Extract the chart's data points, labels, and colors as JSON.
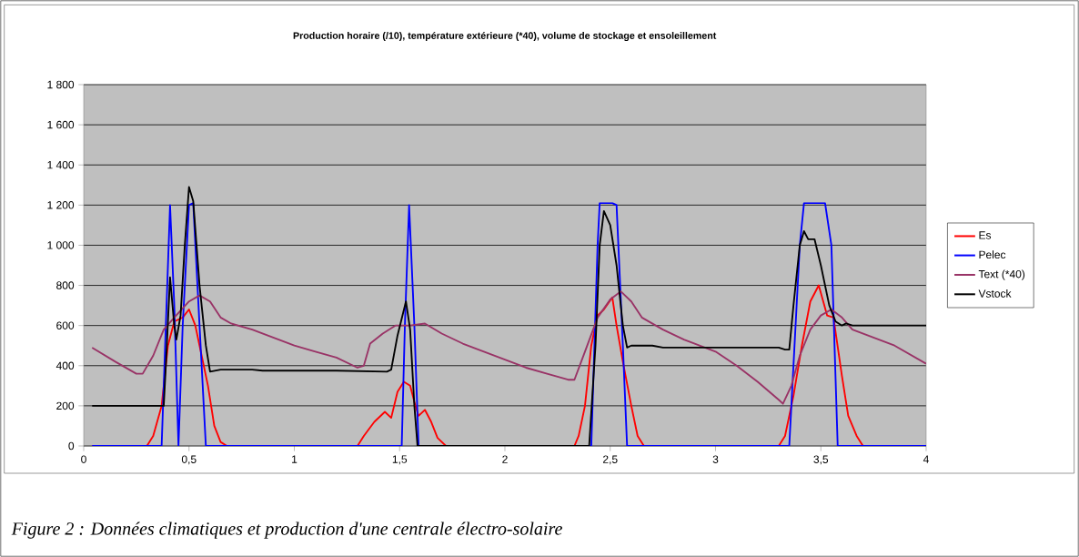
{
  "chart_data": {
    "type": "line",
    "title": "Production horaire (/10), température extérieure (*40), volume de stockage et ensoleillement",
    "annotations": [
      "Figure 2 :  Données climatiques et production d'une centrale électro-solaire"
    ],
    "xlim": [
      0,
      4
    ],
    "xticks": [
      0,
      {
        "value": 0.5,
        "label": "0,5"
      },
      1,
      {
        "value": 1.5,
        "label": "1,5"
      },
      2,
      {
        "value": 2.5,
        "label": "2,5"
      },
      3,
      {
        "value": 3.5,
        "label": "3,5"
      },
      4
    ],
    "ylim": [
      0,
      1800
    ],
    "yticks": [
      0,
      200,
      400,
      600,
      800,
      {
        "value": 1000,
        "label": "1 000"
      },
      {
        "value": 1200,
        "label": "1 200"
      },
      {
        "value": 1400,
        "label": "1 400"
      },
      {
        "value": 1600,
        "label": "1 600"
      },
      {
        "value": 1800,
        "label": "1 800"
      }
    ],
    "grid": "y",
    "legend": "right",
    "marker": "none",
    "line_style": "solid",
    "series": [
      {
        "name": "Es",
        "color": "#ff0000",
        "x": [
          0.04,
          0.3,
          0.33,
          0.37,
          0.4,
          0.43,
          0.47,
          0.5,
          0.53,
          0.56,
          0.59,
          0.62,
          0.65,
          0.68,
          1.3,
          1.33,
          1.38,
          1.43,
          1.46,
          1.49,
          1.52,
          1.55,
          1.57,
          1.59,
          1.62,
          1.65,
          1.68,
          1.72,
          2.33,
          2.35,
          2.38,
          2.41,
          2.44,
          2.47,
          2.51,
          2.53,
          2.56,
          2.6,
          2.63,
          2.66,
          3.3,
          3.33,
          3.37,
          3.41,
          3.45,
          3.49,
          3.53,
          3.56,
          3.6,
          3.63,
          3.67,
          3.7,
          4.0
        ],
        "values": [
          0,
          0,
          50,
          200,
          500,
          620,
          640,
          680,
          600,
          450,
          300,
          100,
          20,
          0,
          0,
          50,
          120,
          170,
          140,
          270,
          320,
          300,
          220,
          150,
          180,
          120,
          40,
          0,
          0,
          50,
          200,
          500,
          650,
          680,
          740,
          600,
          420,
          200,
          50,
          0,
          0,
          50,
          250,
          500,
          720,
          800,
          650,
          640,
          350,
          150,
          50,
          0,
          0
        ]
      },
      {
        "name": "Pelec",
        "color": "#0000ff",
        "x": [
          0.04,
          0.37,
          0.39,
          0.41,
          0.43,
          0.45,
          0.47,
          0.5,
          0.52,
          0.55,
          0.58,
          1.51,
          1.525,
          1.545,
          1.57,
          1.59,
          2.41,
          2.44,
          2.45,
          2.51,
          2.53,
          2.56,
          2.58,
          3.35,
          3.4,
          3.42,
          3.52,
          3.55,
          3.58,
          4.0
        ],
        "values": [
          0,
          0,
          600,
          1200,
          700,
          0,
          600,
          1200,
          1210,
          600,
          0,
          0,
          600,
          1200,
          600,
          0,
          0,
          1000,
          1210,
          1210,
          1200,
          500,
          0,
          0,
          1000,
          1210,
          1210,
          1000,
          0,
          0
        ]
      },
      {
        "name": "Text (*40)",
        "color": "#993366",
        "x": [
          0.04,
          0.15,
          0.25,
          0.28,
          0.33,
          0.38,
          0.43,
          0.5,
          0.55,
          0.6,
          0.65,
          0.7,
          0.8,
          0.9,
          1.0,
          1.1,
          1.2,
          1.3,
          1.33,
          1.36,
          1.42,
          1.48,
          1.55,
          1.62,
          1.7,
          1.8,
          1.9,
          2.0,
          2.1,
          2.2,
          2.3,
          2.33,
          2.38,
          2.44,
          2.5,
          2.55,
          2.6,
          2.65,
          2.75,
          2.85,
          3.0,
          3.1,
          3.2,
          3.3,
          3.32,
          3.36,
          3.4,
          3.45,
          3.5,
          3.55,
          3.6,
          3.65,
          3.75,
          3.85,
          4.0
        ],
        "values": [
          490,
          420,
          360,
          360,
          450,
          580,
          640,
          720,
          750,
          720,
          640,
          610,
          580,
          540,
          500,
          470,
          440,
          390,
          400,
          510,
          560,
          600,
          600,
          610,
          560,
          510,
          470,
          430,
          390,
          360,
          330,
          330,
          470,
          640,
          730,
          770,
          720,
          640,
          580,
          530,
          470,
          400,
          320,
          230,
          210,
          300,
          450,
          580,
          650,
          680,
          640,
          580,
          540,
          500,
          410
        ]
      },
      {
        "name": "Vstock",
        "color": "#000000",
        "x": [
          0.04,
          0.38,
          0.39,
          0.41,
          0.43,
          0.44,
          0.46,
          0.48,
          0.5,
          0.52,
          0.55,
          0.58,
          0.6,
          0.65,
          0.8,
          0.85,
          1.2,
          1.44,
          1.46,
          1.49,
          1.53,
          1.55,
          1.57,
          1.585,
          2.4,
          2.43,
          2.45,
          2.47,
          2.5,
          2.53,
          2.56,
          2.58,
          2.6,
          2.7,
          2.75,
          3.3,
          3.33,
          3.35,
          3.37,
          3.4,
          3.42,
          3.44,
          3.47,
          3.5,
          3.54,
          3.57,
          3.6,
          3.62,
          3.65,
          4.0
        ],
        "values": [
          200,
          200,
          400,
          840,
          600,
          530,
          650,
          1000,
          1290,
          1220,
          800,
          500,
          370,
          380,
          380,
          375,
          375,
          370,
          380,
          550,
          720,
          580,
          200,
          0,
          0,
          500,
          1000,
          1170,
          1100,
          900,
          600,
          490,
          500,
          500,
          490,
          490,
          480,
          480,
          700,
          1000,
          1070,
          1030,
          1030,
          900,
          700,
          620,
          600,
          610,
          600,
          600
        ]
      }
    ]
  }
}
